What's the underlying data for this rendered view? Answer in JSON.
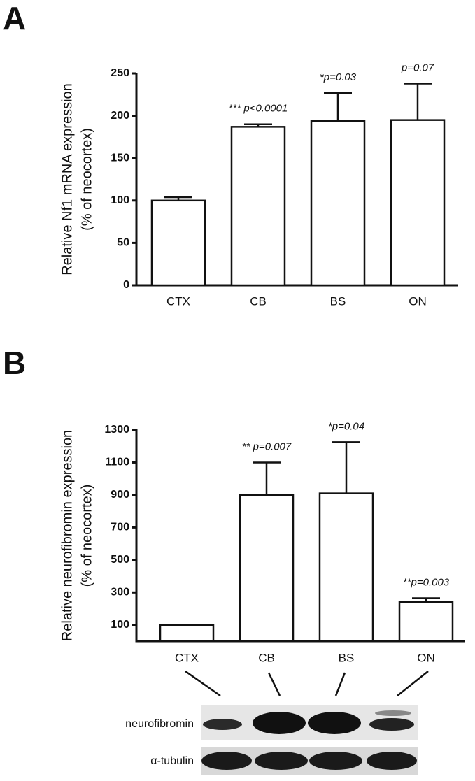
{
  "panel_labels": [
    "A",
    "B"
  ],
  "blot": {
    "labels": [
      "neurofibromin",
      "α-tubulin"
    ]
  },
  "chart_data": [
    {
      "type": "bar",
      "ylabel": [
        "Relative Nf1 mRNA expression",
        "(% of  neocortex)"
      ],
      "categories": [
        "CTX",
        "CB",
        "BS",
        "ON"
      ],
      "values": [
        100,
        187,
        194,
        195
      ],
      "errors": [
        4,
        3,
        33,
        43
      ],
      "annotations": [
        null,
        "*** p<0.0001",
        "*p=0.03",
        "p=0.07"
      ],
      "color": "#ffffff",
      "ylim": [
        0,
        250
      ],
      "yticks": [
        0,
        50,
        100,
        150,
        200,
        250
      ]
    },
    {
      "type": "bar",
      "ylabel": [
        "Relative neurofibromin expression",
        "(% of neocortex)"
      ],
      "categories": [
        "CTX",
        "CB",
        "BS",
        "ON"
      ],
      "values": [
        100,
        900,
        910,
        240
      ],
      "errors": [
        0,
        200,
        315,
        25
      ],
      "annotations": [
        null,
        "** p=0.007",
        "*p=0.04",
        "**p=0.003"
      ],
      "color": "#ffffff",
      "ylim": [
        0,
        1300
      ],
      "yticks": [
        100,
        300,
        500,
        700,
        900,
        1100,
        1300
      ]
    }
  ]
}
